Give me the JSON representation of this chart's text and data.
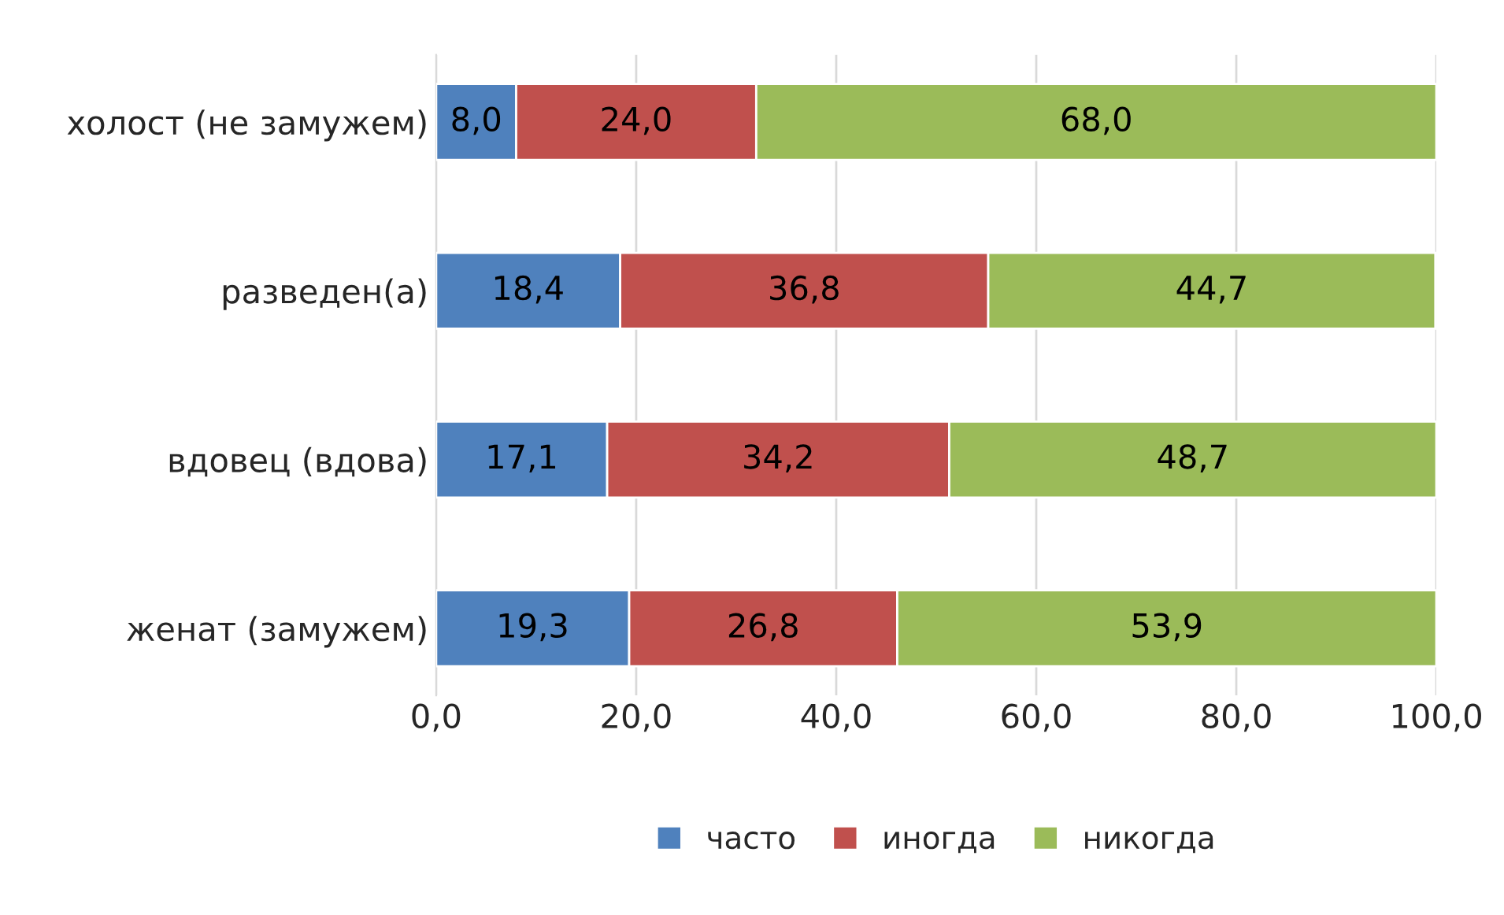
{
  "chart_data": {
    "type": "bar",
    "orientation": "horizontal",
    "stacked": true,
    "categories": [
      "холост (не замужем)",
      "разведен(а)",
      "вдовец (вдова)",
      "женат (замужем)"
    ],
    "series": [
      {
        "name": "часто",
        "color": "#4f81bd",
        "values": [
          8.0,
          18.4,
          17.1,
          19.3
        ],
        "value_labels": [
          "8,0",
          "18,4",
          "17,1",
          "19,3"
        ]
      },
      {
        "name": "иногда",
        "color": "#c0504d",
        "values": [
          24.0,
          36.8,
          34.2,
          26.8
        ],
        "value_labels": [
          "24,0",
          "36,8",
          "34,2",
          "26,8"
        ]
      },
      {
        "name": "никогда",
        "color": "#9bbb59",
        "values": [
          68.0,
          44.7,
          48.7,
          53.9
        ],
        "value_labels": [
          "68,0",
          "44,7",
          "48,7",
          "53,9"
        ]
      }
    ],
    "xlim": [
      0,
      100
    ],
    "xticks": [
      {
        "value": 0,
        "label": "0,0"
      },
      {
        "value": 20,
        "label": "20,0"
      },
      {
        "value": 40,
        "label": "40,0"
      },
      {
        "value": 60,
        "label": "60,0"
      },
      {
        "value": 80,
        "label": "80,0"
      },
      {
        "value": 100,
        "label": "100,0"
      }
    ],
    "grid": "x",
    "legend": "bottom"
  }
}
